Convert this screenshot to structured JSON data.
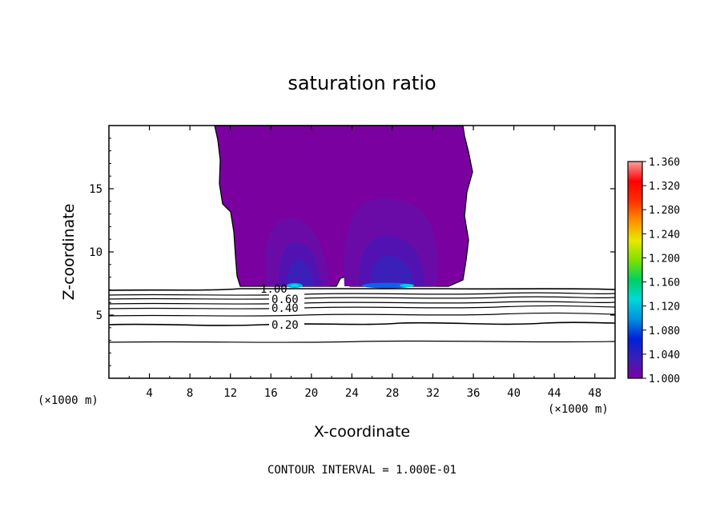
{
  "chart_data": {
    "type": "heatmap",
    "title": "saturation ratio",
    "xlabel": "X-coordinate",
    "ylabel": "Z-coordinate",
    "x_unit_label": "(×1000 m)",
    "footer": "CONTOUR INTERVAL = 1.000E-01",
    "xlim": [
      0,
      50
    ],
    "ylim": [
      0,
      20
    ],
    "x_ticks": [
      4,
      8,
      12,
      16,
      20,
      24,
      28,
      32,
      36,
      40,
      44,
      48
    ],
    "y_ticks": [
      5,
      10,
      15
    ],
    "colorbar": {
      "min": 1.0,
      "max": 1.36,
      "labels": [
        "1.360",
        "1.320",
        "1.280",
        "1.240",
        "1.200",
        "1.160",
        "1.120",
        "1.080",
        "1.040",
        "1.000"
      ],
      "colors": [
        "#7b00a0",
        "#3a1fb8",
        "#0020d8",
        "#0090e0",
        "#00d8d8",
        "#00d060",
        "#80e000",
        "#e8e800",
        "#ff9000",
        "#ff3000",
        "#ff0000",
        "#f8a0a0"
      ]
    },
    "contours": [
      {
        "level": 0.2,
        "label": "0.20",
        "z": 4.2
      },
      {
        "level": 0.4,
        "label": "0.40",
        "z": 5.2
      },
      {
        "level": 0.6,
        "label": "0.60",
        "z": 6.3
      },
      {
        "level": 1.0,
        "label": "1.00",
        "z": 7.0
      }
    ],
    "extra_contours_z": [
      2.8,
      5.6,
      5.9,
      6.6,
      6.8
    ],
    "supersaturated_region": {
      "x_range": [
        10.5,
        36
      ],
      "z_base": 7.0,
      "z_top": 20,
      "base_value": 1.0
    },
    "maxima": [
      {
        "x": 18.5,
        "z": 7.2,
        "value": 1.11
      },
      {
        "x": 28,
        "z": 7.2,
        "value": 1.1
      }
    ]
  }
}
